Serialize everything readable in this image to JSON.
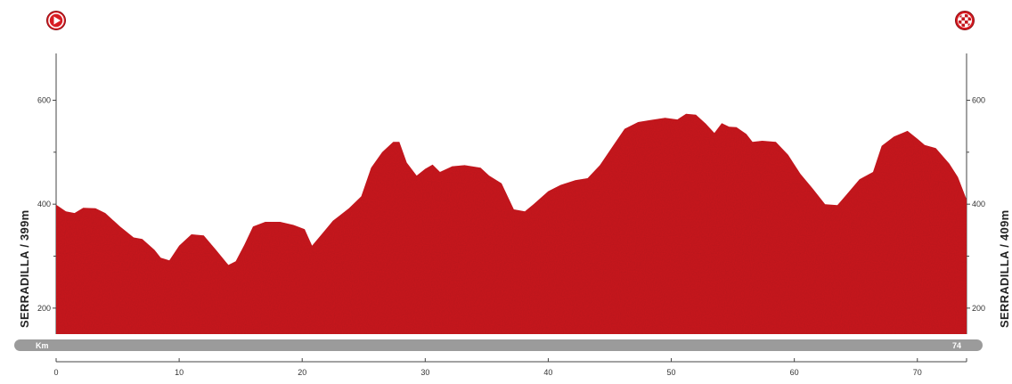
{
  "chart_data": {
    "type": "area",
    "title": "",
    "xlabel": "Km",
    "ylabel": "",
    "start_label": "SERRADILLA / 399m",
    "finish_label": "SERRADILLA / 409m",
    "distance_total": "74",
    "x_ticks": [
      0,
      10,
      20,
      30,
      40,
      50,
      60,
      70
    ],
    "y_ticks_labeled": [
      200,
      400,
      600
    ],
    "y_ticks_minor": [
      300,
      500
    ],
    "xlim": [
      0,
      74
    ],
    "ylim": [
      150,
      690
    ],
    "fill_color": "#cc1b22",
    "bar_color": "#9b9b9b",
    "icons": {
      "start": "play-icon",
      "finish": "checkered-flag-icon"
    },
    "series": [
      {
        "x": [
          0,
          0.8,
          1.5,
          2.2,
          3.2,
          4.0,
          5.2,
          6.3,
          7.0,
          8.0,
          8.5,
          9.2,
          10.0,
          11.0,
          12.0,
          13.0,
          14.0,
          14.6,
          15.3,
          16.0,
          17.0,
          18.2,
          19.3,
          20.2,
          20.8,
          21.4,
          22.5,
          23.8,
          24.8,
          25.6,
          26.5,
          27.4,
          27.9,
          28.5,
          29.3,
          30.0,
          30.6,
          31.2,
          32.2,
          33.2,
          34.5,
          35.2,
          36.2,
          37.2,
          38.1,
          38.8,
          40.0,
          41.0,
          42.2,
          43.2,
          44.2,
          45.2,
          46.2,
          47.3,
          48.3,
          49.5,
          50.5,
          51.2,
          52.0,
          52.8,
          53.5,
          54.1,
          54.7,
          55.3,
          56.1,
          56.6,
          57.4,
          58.5,
          59.5,
          60.5,
          61.5,
          62.5,
          63.5,
          64.3,
          65.3,
          66.4,
          67.1,
          68.1,
          69.2,
          70.0,
          70.6,
          71.5,
          72.6,
          73.3,
          74.0
        ],
        "y": [
          399,
          386,
          383,
          393,
          392,
          383,
          357,
          336,
          333,
          312,
          297,
          292,
          320,
          342,
          340,
          312,
          283,
          290,
          322,
          357,
          366,
          366,
          360,
          352,
          320,
          337,
          368,
          392,
          415,
          470,
          500,
          520,
          520,
          480,
          455,
          468,
          476,
          462,
          473,
          475,
          470,
          455,
          440,
          390,
          386,
          400,
          425,
          437,
          446,
          450,
          475,
          510,
          545,
          558,
          562,
          566,
          563,
          574,
          572,
          555,
          537,
          556,
          549,
          548,
          535,
          520,
          522,
          520,
          495,
          458,
          430,
          400,
          398,
          420,
          448,
          462,
          512,
          530,
          541,
          526,
          514,
          508,
          478,
          452,
          409
        ]
      }
    ]
  }
}
